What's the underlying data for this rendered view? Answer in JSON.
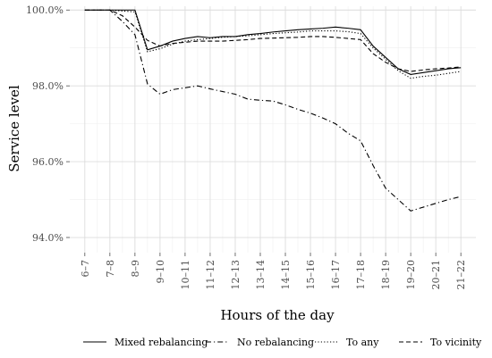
{
  "chart_data": {
    "type": "line",
    "xlabel": "Hours of the day",
    "ylabel": "Service level",
    "categories": [
      "6–7",
      "7–8",
      "8–9",
      "9–10",
      "10–11",
      "11–12",
      "12–13",
      "13–14",
      "14–15",
      "15–16",
      "16–17",
      "17–18",
      "18–19",
      "19–20",
      "20–21",
      "21–22"
    ],
    "x_tick_positions": [
      0,
      1,
      2,
      3,
      4,
      5,
      6,
      7,
      8,
      9,
      10,
      11,
      12,
      13,
      14,
      15
    ],
    "y_ticks": [
      94.0,
      96.0,
      98.0,
      100.0
    ],
    "y_tick_labels": [
      "94.0%",
      "96.0%",
      "98.0%",
      "100.0%"
    ],
    "ylim": [
      93.6,
      100.1
    ],
    "xlim": [
      -0.6,
      15.6
    ],
    "grid": true,
    "legend_position": "bottom",
    "series": [
      {
        "name": "Mixed rebalancing",
        "dash": "solid",
        "x": [
          0,
          1,
          2,
          2.5,
          3,
          3.5,
          4,
          4.5,
          5,
          5.5,
          6,
          6.5,
          7,
          7.5,
          8,
          8.5,
          9,
          9.5,
          10,
          10.5,
          11,
          11.5,
          12,
          12.5,
          13,
          13.5,
          14,
          14.5,
          15
        ],
        "y": [
          100.0,
          100.0,
          100.0,
          98.95,
          99.05,
          99.18,
          99.25,
          99.3,
          99.27,
          99.3,
          99.3,
          99.35,
          99.38,
          99.42,
          99.45,
          99.48,
          99.5,
          99.52,
          99.55,
          99.52,
          99.48,
          99.05,
          98.75,
          98.45,
          98.3,
          98.35,
          98.4,
          98.45,
          98.48
        ]
      },
      {
        "name": "No rebalancing",
        "dash": "dashdot",
        "x": [
          0,
          1,
          1.5,
          2,
          2.5,
          3,
          3.5,
          4,
          4.5,
          5,
          5.5,
          6,
          6.5,
          7,
          7.5,
          8,
          8.5,
          9,
          9.5,
          10,
          10.5,
          11,
          11.5,
          12,
          12.5,
          13,
          13.5,
          14,
          14.5,
          15
        ],
        "y": [
          100.0,
          100.0,
          99.7,
          99.35,
          98.05,
          97.78,
          97.9,
          97.95,
          98.0,
          97.92,
          97.85,
          97.78,
          97.65,
          97.62,
          97.6,
          97.5,
          97.38,
          97.28,
          97.15,
          97.0,
          96.75,
          96.55,
          95.9,
          95.3,
          95.0,
          94.7,
          94.8,
          94.9,
          95.0,
          95.08
        ]
      },
      {
        "name": "To any",
        "dash": "dotted",
        "x": [
          0,
          1,
          2,
          2.5,
          3,
          3.5,
          4,
          4.5,
          5,
          5.5,
          6,
          6.5,
          7,
          7.5,
          8,
          8.5,
          9,
          9.5,
          10,
          10.5,
          11,
          11.5,
          12,
          12.5,
          13,
          13.5,
          14,
          14.5,
          15
        ],
        "y": [
          100.0,
          100.0,
          99.95,
          98.9,
          98.98,
          99.1,
          99.18,
          99.22,
          99.25,
          99.28,
          99.3,
          99.32,
          99.35,
          99.38,
          99.4,
          99.42,
          99.45,
          99.45,
          99.45,
          99.43,
          99.38,
          99.0,
          98.7,
          98.4,
          98.2,
          98.25,
          98.28,
          98.33,
          98.38
        ]
      },
      {
        "name": "To vicinity",
        "dash": "dashed",
        "x": [
          0,
          1,
          1.5,
          2,
          2.5,
          3,
          3.5,
          4,
          4.5,
          5,
          5.5,
          6,
          6.5,
          7,
          7.5,
          8,
          8.5,
          9,
          9.5,
          10,
          10.5,
          11,
          11.5,
          12,
          12.5,
          13,
          13.5,
          14,
          14.5,
          15
        ],
        "y": [
          100.0,
          100.0,
          99.85,
          99.55,
          99.2,
          99.05,
          99.12,
          99.15,
          99.18,
          99.18,
          99.18,
          99.2,
          99.22,
          99.25,
          99.26,
          99.27,
          99.28,
          99.3,
          99.3,
          99.28,
          99.25,
          99.22,
          98.85,
          98.62,
          98.45,
          98.38,
          98.42,
          98.45,
          98.47,
          98.5
        ]
      }
    ]
  }
}
